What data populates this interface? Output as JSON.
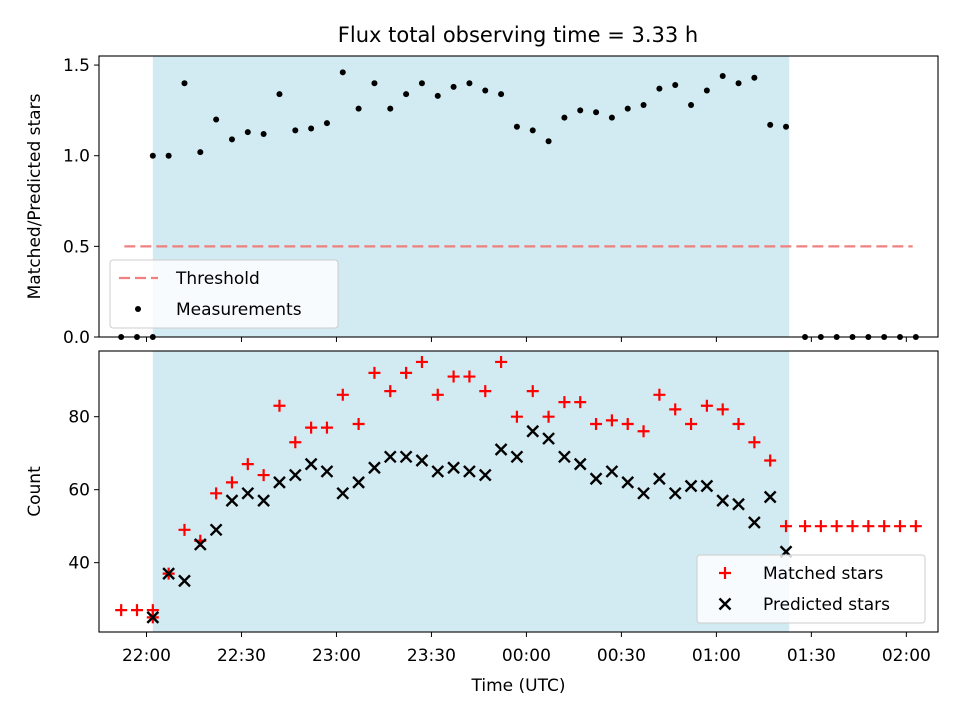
{
  "figure": {
    "title": "Flux total observing time = 3.33 h"
  },
  "chart_data": [
    {
      "type": "scatter",
      "panel": "top",
      "title": "Flux total observing time = 3.33 h",
      "xlabel": "",
      "ylabel": "Matched/Predicted stars",
      "ylim": [
        0,
        1.55
      ],
      "yticks": [
        "0.0",
        "0.5",
        "1.0",
        "1.5"
      ],
      "xlim": [
        "21:45",
        "02:10"
      ],
      "observing_span": {
        "start": "22:02",
        "end": "01:23",
        "color": "#add8e6"
      },
      "threshold": {
        "name": "Threshold",
        "value": 0.5,
        "x_start": "21:53",
        "x_end": "02:02",
        "color": "#f08080",
        "style": "dashed"
      },
      "legend": {
        "position": "lower-left",
        "entries": [
          "Threshold",
          "Measurements"
        ]
      },
      "series": [
        {
          "name": "Measurements",
          "marker": "dot",
          "color": "#000000",
          "points": [
            [
              "21:52",
              0.0
            ],
            [
              "21:57",
              0.0
            ],
            [
              "22:02",
              0.0
            ],
            [
              "22:02",
              1.0
            ],
            [
              "22:07",
              1.0
            ],
            [
              "22:12",
              1.4
            ],
            [
              "22:17",
              1.02
            ],
            [
              "22:22",
              1.2
            ],
            [
              "22:27",
              1.09
            ],
            [
              "22:32",
              1.13
            ],
            [
              "22:37",
              1.12
            ],
            [
              "22:42",
              1.34
            ],
            [
              "22:47",
              1.14
            ],
            [
              "22:52",
              1.15
            ],
            [
              "22:57",
              1.18
            ],
            [
              "23:02",
              1.46
            ],
            [
              "23:07",
              1.26
            ],
            [
              "23:12",
              1.4
            ],
            [
              "23:17",
              1.26
            ],
            [
              "23:22",
              1.34
            ],
            [
              "23:27",
              1.4
            ],
            [
              "23:32",
              1.33
            ],
            [
              "23:37",
              1.38
            ],
            [
              "23:42",
              1.4
            ],
            [
              "23:47",
              1.36
            ],
            [
              "23:52",
              1.34
            ],
            [
              "23:57",
              1.16
            ],
            [
              "00:02",
              1.14
            ],
            [
              "00:07",
              1.08
            ],
            [
              "00:12",
              1.21
            ],
            [
              "00:17",
              1.25
            ],
            [
              "00:22",
              1.24
            ],
            [
              "00:27",
              1.21
            ],
            [
              "00:32",
              1.26
            ],
            [
              "00:37",
              1.28
            ],
            [
              "00:42",
              1.37
            ],
            [
              "00:47",
              1.39
            ],
            [
              "00:52",
              1.28
            ],
            [
              "00:57",
              1.36
            ],
            [
              "01:02",
              1.44
            ],
            [
              "01:07",
              1.4
            ],
            [
              "01:12",
              1.43
            ],
            [
              "01:17",
              1.17
            ],
            [
              "01:22",
              1.16
            ],
            [
              "01:28",
              0.0
            ],
            [
              "01:33",
              0.0
            ],
            [
              "01:38",
              0.0
            ],
            [
              "01:43",
              0.0
            ],
            [
              "01:48",
              0.0
            ],
            [
              "01:53",
              0.0
            ],
            [
              "01:58",
              0.0
            ],
            [
              "02:03",
              0.0
            ]
          ]
        }
      ]
    },
    {
      "type": "scatter",
      "panel": "bottom",
      "xlabel": "Time (UTC)",
      "ylabel": "Count",
      "ylim": [
        21,
        98
      ],
      "yticks": [
        "40",
        "60",
        "80"
      ],
      "xlim": [
        "21:45",
        "02:10"
      ],
      "xticks": [
        "22:00",
        "22:30",
        "23:00",
        "23:30",
        "00:00",
        "00:30",
        "01:00",
        "01:30",
        "02:00"
      ],
      "observing_span": {
        "start": "22:02",
        "end": "01:23",
        "color": "#add8e6"
      },
      "legend": {
        "position": "lower-right",
        "entries": [
          "Matched stars",
          "Predicted stars"
        ]
      },
      "series": [
        {
          "name": "Matched stars",
          "marker": "plus",
          "color": "#ff0000",
          "points": [
            [
              "21:52",
              27
            ],
            [
              "21:57",
              27
            ],
            [
              "22:02",
              27
            ],
            [
              "22:02",
              25
            ],
            [
              "22:07",
              37
            ],
            [
              "22:12",
              49
            ],
            [
              "22:17",
              46
            ],
            [
              "22:22",
              59
            ],
            [
              "22:27",
              62
            ],
            [
              "22:32",
              67
            ],
            [
              "22:37",
              64
            ],
            [
              "22:42",
              83
            ],
            [
              "22:47",
              73
            ],
            [
              "22:52",
              77
            ],
            [
              "22:57",
              77
            ],
            [
              "23:02",
              86
            ],
            [
              "23:07",
              78
            ],
            [
              "23:12",
              92
            ],
            [
              "23:17",
              87
            ],
            [
              "23:22",
              92
            ],
            [
              "23:27",
              95
            ],
            [
              "23:32",
              86
            ],
            [
              "23:37",
              91
            ],
            [
              "23:42",
              91
            ],
            [
              "23:47",
              87
            ],
            [
              "23:52",
              95
            ],
            [
              "23:57",
              80
            ],
            [
              "00:02",
              87
            ],
            [
              "00:07",
              80
            ],
            [
              "00:12",
              84
            ],
            [
              "00:17",
              84
            ],
            [
              "00:22",
              78
            ],
            [
              "00:27",
              79
            ],
            [
              "00:32",
              78
            ],
            [
              "00:37",
              76
            ],
            [
              "00:42",
              86
            ],
            [
              "00:47",
              82
            ],
            [
              "00:52",
              78
            ],
            [
              "00:57",
              83
            ],
            [
              "01:02",
              82
            ],
            [
              "01:07",
              78
            ],
            [
              "01:12",
              73
            ],
            [
              "01:17",
              68
            ],
            [
              "01:22",
              50
            ],
            [
              "01:28",
              50
            ],
            [
              "01:33",
              50
            ],
            [
              "01:38",
              50
            ],
            [
              "01:43",
              50
            ],
            [
              "01:48",
              50
            ],
            [
              "01:53",
              50
            ],
            [
              "01:58",
              50
            ],
            [
              "02:03",
              50
            ]
          ]
        },
        {
          "name": "Predicted stars",
          "marker": "x",
          "color": "#000000",
          "points": [
            [
              "22:02",
              25
            ],
            [
              "22:07",
              37
            ],
            [
              "22:12",
              35
            ],
            [
              "22:17",
              45
            ],
            [
              "22:22",
              49
            ],
            [
              "22:27",
              57
            ],
            [
              "22:32",
              59
            ],
            [
              "22:37",
              57
            ],
            [
              "22:42",
              62
            ],
            [
              "22:47",
              64
            ],
            [
              "22:52",
              67
            ],
            [
              "22:57",
              65
            ],
            [
              "23:02",
              59
            ],
            [
              "23:07",
              62
            ],
            [
              "23:12",
              66
            ],
            [
              "23:17",
              69
            ],
            [
              "23:22",
              69
            ],
            [
              "23:27",
              68
            ],
            [
              "23:32",
              65
            ],
            [
              "23:37",
              66
            ],
            [
              "23:42",
              65
            ],
            [
              "23:47",
              64
            ],
            [
              "23:52",
              71
            ],
            [
              "23:57",
              69
            ],
            [
              "00:02",
              76
            ],
            [
              "00:07",
              74
            ],
            [
              "00:12",
              69
            ],
            [
              "00:17",
              67
            ],
            [
              "00:22",
              63
            ],
            [
              "00:27",
              65
            ],
            [
              "00:32",
              62
            ],
            [
              "00:37",
              59
            ],
            [
              "00:42",
              63
            ],
            [
              "00:47",
              59
            ],
            [
              "00:52",
              61
            ],
            [
              "00:57",
              61
            ],
            [
              "01:02",
              57
            ],
            [
              "01:07",
              56
            ],
            [
              "01:12",
              51
            ],
            [
              "01:17",
              58
            ],
            [
              "01:22",
              43
            ]
          ]
        }
      ]
    }
  ]
}
